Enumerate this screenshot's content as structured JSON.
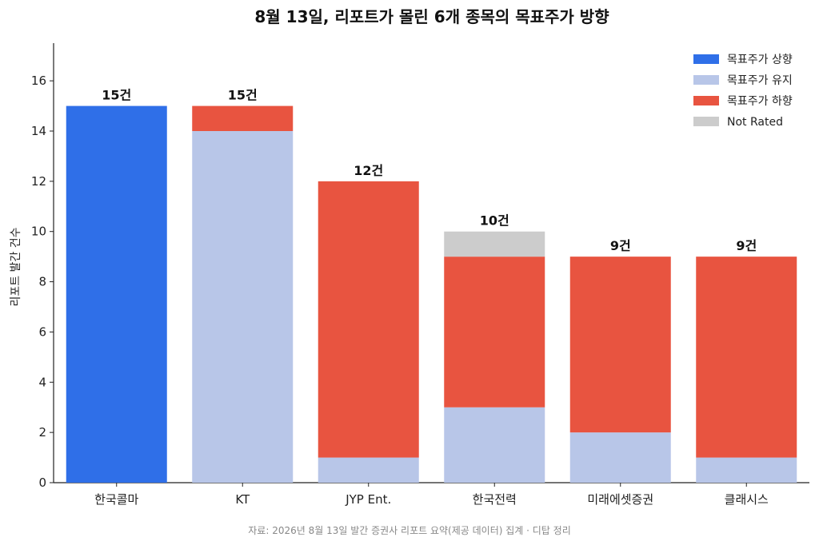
{
  "chart_data": {
    "type": "bar",
    "stacked": true,
    "title": "8월 13일, 리포트가 몰린 6개 종목의 목표주가 방향",
    "xlabel": "",
    "ylabel": "리포트 발간 건수",
    "ylim": [
      0,
      17.5
    ],
    "yticks": [
      0,
      2,
      4,
      6,
      8,
      10,
      12,
      14,
      16
    ],
    "grid": false,
    "legend_position": "top-right",
    "categories": [
      "한국콜마",
      "KT",
      "JYP Ent.",
      "한국전력",
      "미래에셋증권",
      "클래시스"
    ],
    "series": [
      {
        "name": "목표주가 상향",
        "color": "#2f6fe8",
        "values": [
          15,
          0,
          0,
          0,
          0,
          0
        ]
      },
      {
        "name": "목표주가 유지",
        "color": "#b8c6e8",
        "values": [
          0,
          14,
          1,
          3,
          2,
          1
        ]
      },
      {
        "name": "목표주가 하향",
        "color": "#e85440",
        "values": [
          0,
          1,
          11,
          6,
          7,
          8
        ]
      },
      {
        "name": "Not Rated",
        "color": "#cccccc",
        "values": [
          0,
          0,
          0,
          1,
          0,
          0
        ]
      }
    ],
    "data_labels": [
      "15건",
      "15건",
      "12건",
      "10건",
      "9건",
      "9건"
    ],
    "source": "자료: 2026년 8월 13일 발간 증권사 리포트 요약(제공 데이터) 집계 · 디탑 정리"
  }
}
